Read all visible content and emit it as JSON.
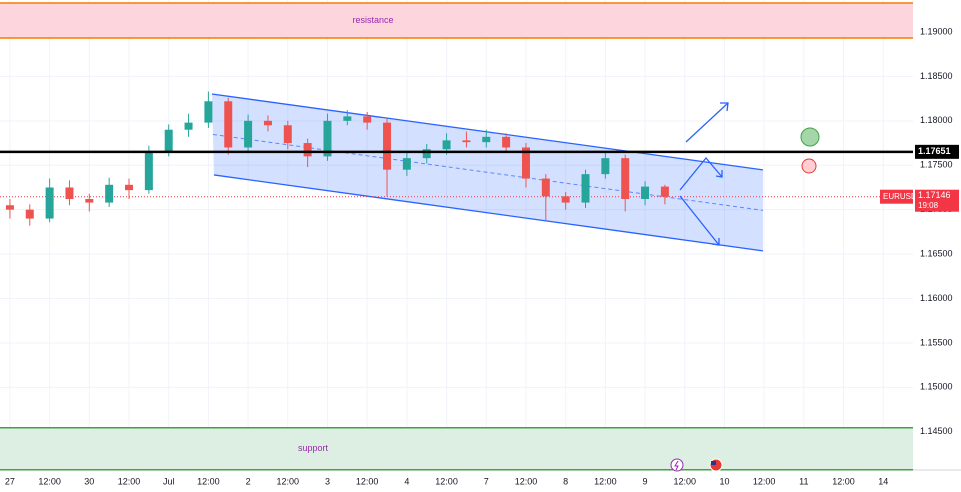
{
  "chart_data": {
    "type": "candlestick",
    "symbol": "EURUSD",
    "x": [
      0,
      0.5,
      1,
      1.5,
      2,
      2.5,
      3,
      3.5,
      4,
      4.5,
      5,
      5.5,
      6,
      6.5,
      7,
      7.5,
      8,
      8.5,
      9,
      9.5,
      10,
      10.5,
      11,
      11.5,
      12,
      12.5,
      13,
      13.5,
      14,
      14.5,
      15,
      15.5,
      16,
      16.5
    ],
    "open": [
      1.1705,
      1.17,
      1.169,
      1.1725,
      1.1712,
      1.1708,
      1.1728,
      1.1722,
      1.1765,
      1.179,
      1.1798,
      1.1822,
      1.177,
      1.18,
      1.1795,
      1.1775,
      1.176,
      1.18,
      1.1805,
      1.1798,
      1.1745,
      1.1758,
      1.1768,
      1.1778,
      1.1776,
      1.1782,
      1.177,
      1.1735,
      1.1715,
      1.1708,
      1.174,
      1.1758,
      1.1712,
      1.1726
    ],
    "high": [
      1.1712,
      1.1706,
      1.1735,
      1.1733,
      1.1718,
      1.1736,
      1.1735,
      1.1772,
      1.1796,
      1.1808,
      1.1833,
      1.1826,
      1.1807,
      1.1806,
      1.18,
      1.178,
      1.1808,
      1.1812,
      1.181,
      1.1803,
      1.1765,
      1.1774,
      1.1786,
      1.1788,
      1.179,
      1.1786,
      1.1775,
      1.174,
      1.172,
      1.1745,
      1.1765,
      1.1762,
      1.1732,
      1.1728
    ],
    "low": [
      1.169,
      1.1682,
      1.1686,
      1.1705,
      1.1698,
      1.1703,
      1.1712,
      1.1718,
      1.176,
      1.1782,
      1.1792,
      1.1762,
      1.1764,
      1.1788,
      1.1768,
      1.1748,
      1.1755,
      1.1795,
      1.179,
      1.1715,
      1.1738,
      1.1752,
      1.1762,
      1.177,
      1.177,
      1.1765,
      1.1725,
      1.1688,
      1.17,
      1.1702,
      1.1735,
      1.1698,
      1.1705,
      1.1706
    ],
    "close": [
      1.17,
      1.169,
      1.1725,
      1.1712,
      1.1708,
      1.1728,
      1.1722,
      1.1765,
      1.179,
      1.1798,
      1.1822,
      1.177,
      1.18,
      1.1795,
      1.1775,
      1.176,
      1.18,
      1.1805,
      1.1798,
      1.1745,
      1.1758,
      1.1768,
      1.1778,
      1.1776,
      1.1782,
      1.177,
      1.1735,
      1.1715,
      1.1708,
      1.174,
      1.1758,
      1.1712,
      1.1726,
      1.17146
    ],
    "up_color": "#26a69a",
    "down_color": "#ef5350",
    "xlim": [
      -0.25,
      22.75
    ],
    "xticks": [
      {
        "value": 0,
        "label": "27"
      },
      {
        "value": 1,
        "label": "12:00"
      },
      {
        "value": 2,
        "label": "30"
      },
      {
        "value": 3,
        "label": "12:00"
      },
      {
        "value": 4,
        "label": "Jul"
      },
      {
        "value": 5,
        "label": "12:00"
      },
      {
        "value": 6,
        "label": "2"
      },
      {
        "value": 7,
        "label": "12:00"
      },
      {
        "value": 8,
        "label": "3"
      },
      {
        "value": 9,
        "label": "12:00"
      },
      {
        "value": 10,
        "label": "4"
      },
      {
        "value": 11,
        "label": "12:00"
      },
      {
        "value": 12,
        "label": "7"
      },
      {
        "value": 13,
        "label": "12:00"
      },
      {
        "value": 14,
        "label": "8"
      },
      {
        "value": 15,
        "label": "12:00"
      },
      {
        "value": 16,
        "label": "9"
      },
      {
        "value": 17,
        "label": "12:00"
      },
      {
        "value": 18,
        "label": "10"
      },
      {
        "value": 19,
        "label": "12:00"
      },
      {
        "value": 20,
        "label": "11"
      },
      {
        "value": 21,
        "label": "12:00"
      },
      {
        "value": 22,
        "label": "14"
      }
    ],
    "ylim": [
      1.1407,
      1.1936
    ],
    "yticks": [
      {
        "value": 1.145,
        "label": "1.14500"
      },
      {
        "value": 1.15,
        "label": "1.15000"
      },
      {
        "value": 1.155,
        "label": "1.15500"
      },
      {
        "value": 1.16,
        "label": "1.16000"
      },
      {
        "value": 1.165,
        "label": "1.16500"
      },
      {
        "value": 1.17,
        "label": "1.17000"
      },
      {
        "value": 1.175,
        "label": "1.17500"
      },
      {
        "value": 1.18,
        "label": "1.18000"
      },
      {
        "value": 1.185,
        "label": "1.18500"
      },
      {
        "value": 1.19,
        "label": "1.19000"
      }
    ],
    "grid": true,
    "zones": [
      {
        "label": "resistance",
        "range": [
          1.18933,
          1.19326
        ],
        "fill": "#fcd6dc",
        "border": "#f57c00"
      },
      {
        "label": "support",
        "range": [
          1.14073,
          1.14545
        ],
        "fill": "#dcefe2",
        "border": "#43a047"
      }
    ],
    "hline": {
      "value": 1.17651,
      "color": "#000000"
    },
    "last_price": {
      "value": 1.17146,
      "countdown": "19:08",
      "color": "#f23645"
    },
    "channel": {
      "upper": [
        [
          5.09,
          1.18302
        ],
        [
          18.97,
          1.17448
        ]
      ],
      "lower": [
        [
          5.14,
          1.17391
        ],
        [
          18.97,
          1.16536
        ]
      ],
      "color": "#2962ff"
    }
  }
}
